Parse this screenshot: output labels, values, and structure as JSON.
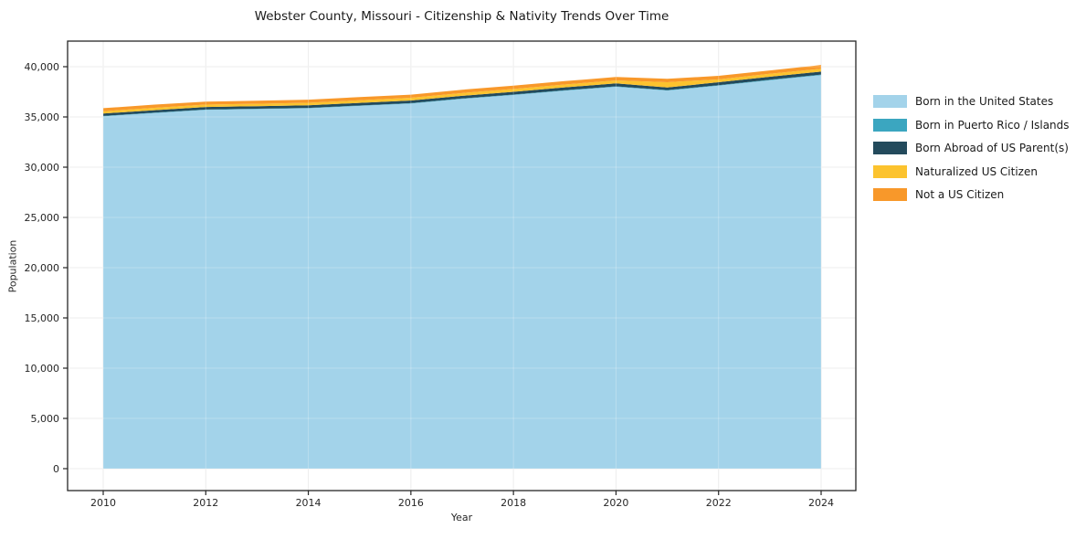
{
  "chart_data": {
    "type": "area",
    "stacked": true,
    "title": "Webster County, Missouri - Citizenship & Nativity Trends Over Time",
    "xlabel": "Year",
    "ylabel": "Population",
    "x": [
      2010,
      2011,
      2012,
      2013,
      2014,
      2015,
      2016,
      2017,
      2018,
      2019,
      2020,
      2021,
      2022,
      2023,
      2024
    ],
    "x_ticks": [
      2010,
      2012,
      2014,
      2016,
      2018,
      2020,
      2022,
      2024
    ],
    "y_tick_values": [
      0,
      5000,
      10000,
      15000,
      20000,
      25000,
      30000,
      35000,
      40000
    ],
    "y_tick_labels": [
      "0",
      "5,000",
      "10,000",
      "15,000",
      "20,000",
      "25,000",
      "30,000",
      "35,000",
      "40,000"
    ],
    "grid": true,
    "legend_position": "outside-right",
    "colors": {
      "background": "#ffffff",
      "grid": "#e8e8e8",
      "axis": "#262626"
    },
    "series": [
      {
        "name": "Born in the United States",
        "color": "#a3d3ea",
        "values": [
          35060,
          35390,
          35700,
          35780,
          35860,
          36100,
          36330,
          36790,
          37180,
          37610,
          38000,
          37620,
          38110,
          38650,
          39160
        ]
      },
      {
        "name": "Born in Puerto Rico / Islands",
        "color": "#3ba6c0",
        "values": [
          40,
          40,
          40,
          40,
          40,
          40,
          45,
          45,
          50,
          50,
          50,
          50,
          55,
          55,
          60
        ]
      },
      {
        "name": "Born Abroad of US Parent(s)",
        "color": "#234a5c",
        "values": [
          240,
          245,
          250,
          250,
          255,
          260,
          265,
          270,
          275,
          280,
          285,
          265,
          285,
          290,
          295
        ]
      },
      {
        "name": "Naturalized US Citizen",
        "color": "#fcc32e",
        "values": [
          230,
          240,
          235,
          240,
          250,
          255,
          265,
          275,
          280,
          290,
          300,
          520,
          290,
          295,
          285
        ]
      },
      {
        "name": "Not a US Citizen",
        "color": "#f8982a",
        "values": [
          300,
          310,
          300,
          305,
          310,
          320,
          315,
          330,
          330,
          335,
          340,
          345,
          345,
          330,
          370
        ]
      }
    ]
  }
}
